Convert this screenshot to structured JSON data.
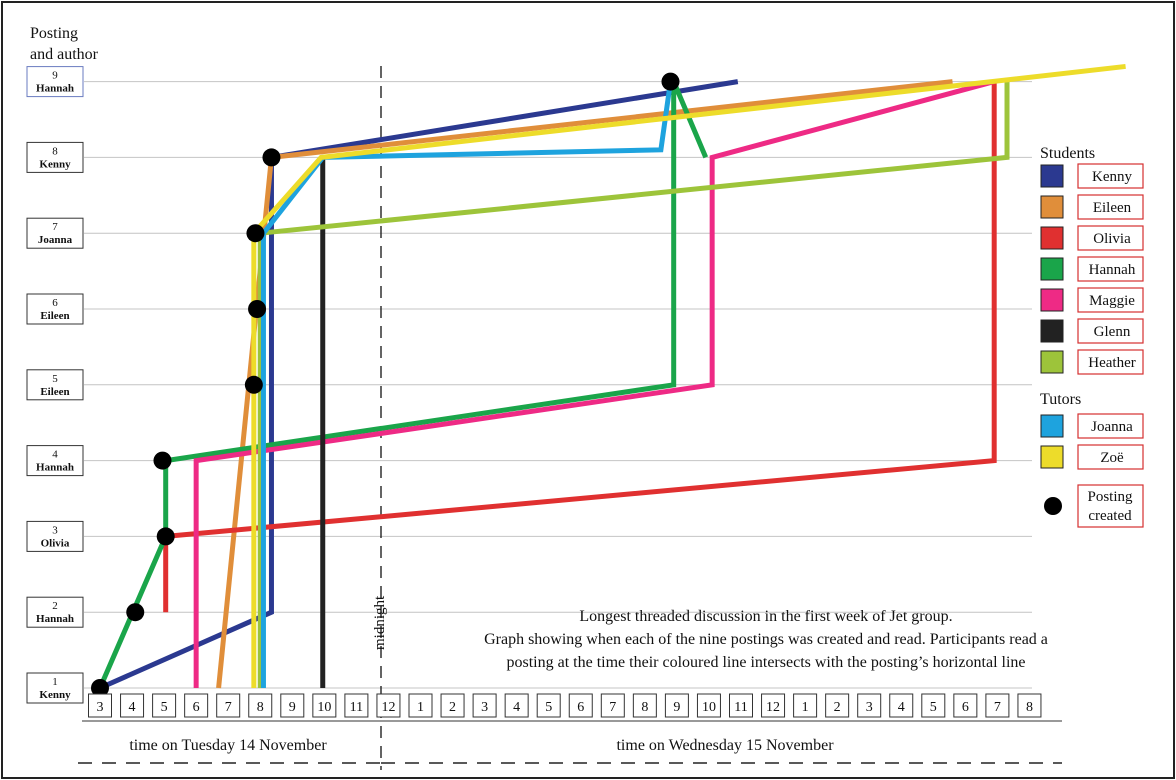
{
  "y_axis": {
    "title_line1": "Posting",
    "title_line2": "and author"
  },
  "postings": [
    {
      "num": "1",
      "author": "Kenny"
    },
    {
      "num": "2",
      "author": "Hannah"
    },
    {
      "num": "3",
      "author": "Olivia"
    },
    {
      "num": "4",
      "author": "Hannah"
    },
    {
      "num": "5",
      "author": "Eileen"
    },
    {
      "num": "6",
      "author": "Eileen"
    },
    {
      "num": "7",
      "author": "Joanna"
    },
    {
      "num": "8",
      "author": "Kenny"
    },
    {
      "num": "9",
      "author": "Hannah"
    }
  ],
  "hours": [
    "3",
    "4",
    "5",
    "6",
    "7",
    "8",
    "9",
    "10",
    "11",
    "12",
    "1",
    "2",
    "3",
    "4",
    "5",
    "6",
    "7",
    "8",
    "9",
    "10",
    "11",
    "12",
    "1",
    "2",
    "3",
    "4",
    "5",
    "6",
    "7",
    "8"
  ],
  "midnight_label": "midnight",
  "day_labels": {
    "tuesday": "time on Tuesday 14 November",
    "wednesday": "time on Wednesday 15 November"
  },
  "caption": {
    "line1": "Longest threaded discussion in the first week of Jet group.",
    "line2": "Graph showing when each of the nine postings was created and read. Participants read a",
    "line3": "posting at the time their coloured line intersects with the posting’s horizontal line"
  },
  "legend": {
    "students_title": "Students",
    "students": [
      {
        "name": "Kenny",
        "color": "#2b3990"
      },
      {
        "name": "Eileen",
        "color": "#e08e3a"
      },
      {
        "name": "Olivia",
        "color": "#e03030"
      },
      {
        "name": "Hannah",
        "color": "#1aa54a"
      },
      {
        "name": "Maggie",
        "color": "#ee2a85"
      },
      {
        "name": "Glenn",
        "color": "#222222"
      },
      {
        "name": "Heather",
        "color": "#9dc43a"
      }
    ],
    "tutors_title": "Tutors",
    "tutors": [
      {
        "name": "Joanna",
        "color": "#1ea3de"
      },
      {
        "name": "Zoë",
        "color": "#eddc2a"
      }
    ],
    "posting_line1": "Posting",
    "posting_line2": "created"
  },
  "created_points": [
    {
      "posting": 1,
      "hour_index": 0
    },
    {
      "posting": 2,
      "hour_index": 1.1
    },
    {
      "posting": 3,
      "hour_index": 2.05
    },
    {
      "posting": 4,
      "hour_index": 1.95
    },
    {
      "posting": 5,
      "hour_index": 4.8
    },
    {
      "posting": 6,
      "hour_index": 4.9
    },
    {
      "posting": 7,
      "hour_index": 4.85
    },
    {
      "posting": 8,
      "hour_index": 5.35
    },
    {
      "posting": 9,
      "hour_index": 17.8
    }
  ],
  "participant_lines": [
    {
      "name": "Kenny",
      "color": "#2b3990",
      "points": [
        [
          0,
          1
        ],
        [
          5.35,
          2
        ],
        [
          5.35,
          8
        ],
        [
          19.9,
          9
        ]
      ]
    },
    {
      "name": "Eileen",
      "color": "#e08e3a",
      "points": [
        [
          3.7,
          1
        ],
        [
          5.35,
          8
        ],
        [
          26.6,
          9
        ]
      ]
    },
    {
      "name": "Olivia",
      "color": "#e03030",
      "points": [
        [
          2.05,
          2
        ],
        [
          2.05,
          3
        ],
        [
          27.9,
          4
        ],
        [
          27.9,
          9
        ]
      ]
    },
    {
      "name": "Hannah",
      "color": "#1aa54a",
      "points": [
        [
          0,
          1
        ],
        [
          2.05,
          3
        ],
        [
          2.05,
          4
        ],
        [
          17.9,
          5
        ],
        [
          17.9,
          9
        ],
        [
          18.9,
          8
        ]
      ]
    },
    {
      "name": "Maggie",
      "color": "#ee2a85",
      "points": [
        [
          3,
          1
        ],
        [
          3,
          4
        ],
        [
          19.1,
          5
        ],
        [
          19.1,
          8
        ],
        [
          27.9,
          9
        ]
      ]
    },
    {
      "name": "Glenn",
      "color": "#222222",
      "points": [
        [
          6.95,
          1
        ],
        [
          6.95,
          8
        ]
      ]
    },
    {
      "name": "Heather",
      "color": "#9dc43a",
      "points": [
        [
          5,
          1
        ],
        [
          5,
          7
        ],
        [
          28.3,
          8
        ],
        [
          28.3,
          9
        ]
      ]
    },
    {
      "name": "Joanna",
      "color": "#1ea3de",
      "points": [
        [
          5.1,
          1
        ],
        [
          5.1,
          7
        ],
        [
          6.95,
          8
        ],
        [
          17.5,
          8.1
        ],
        [
          17.8,
          9
        ]
      ]
    },
    {
      "name": "Zoë",
      "color": "#eddc2a",
      "points": [
        [
          4.8,
          1
        ],
        [
          4.8,
          7
        ],
        [
          6.9,
          8
        ],
        [
          32,
          9.2
        ]
      ]
    }
  ]
}
